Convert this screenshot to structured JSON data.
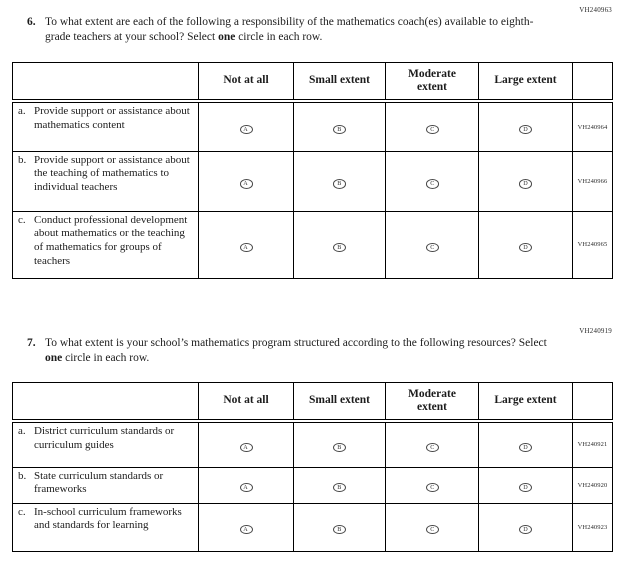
{
  "q6": {
    "form_code": "VH240963",
    "number": "6.",
    "text_before": "To what extent are each of the following a responsibility of the mathematics coach(es) available to eighth-grade teachers at your school? Select ",
    "select_emphasis": "one",
    "text_after": " circle in each row.",
    "columns": [
      "Not at all",
      "Small extent",
      "Moderate extent",
      "Large extent"
    ],
    "options": [
      "A",
      "B",
      "C",
      "D"
    ],
    "rows": [
      {
        "letter": "a.",
        "label": "Provide support or assistance about mathematics content",
        "code": "VH240964"
      },
      {
        "letter": "b.",
        "label": "Provide support or assistance about the teaching of mathematics to individual teachers",
        "code": "VH240966"
      },
      {
        "letter": "c.",
        "label": "Conduct professional development about mathematics or the teaching of mathematics for groups of teachers",
        "code": "VH240965"
      }
    ]
  },
  "q7": {
    "form_code": "VH240919",
    "number": "7.",
    "text_before": "To what extent is your school’s mathematics program structured according to the following resources? Select ",
    "select_emphasis": "one",
    "text_after": " circle in each row.",
    "columns": [
      "Not at all",
      "Small extent",
      "Moderate extent",
      "Large extent"
    ],
    "options": [
      "A",
      "B",
      "C",
      "D"
    ],
    "rows": [
      {
        "letter": "a.",
        "label": "District curriculum standards or curriculum guides",
        "code": "VH240921"
      },
      {
        "letter": "b.",
        "label": "State curriculum standards or frameworks",
        "code": "VH240920"
      },
      {
        "letter": "c.",
        "label": "In-school curriculum frameworks and standards for learning",
        "code": "VH240923"
      }
    ]
  }
}
